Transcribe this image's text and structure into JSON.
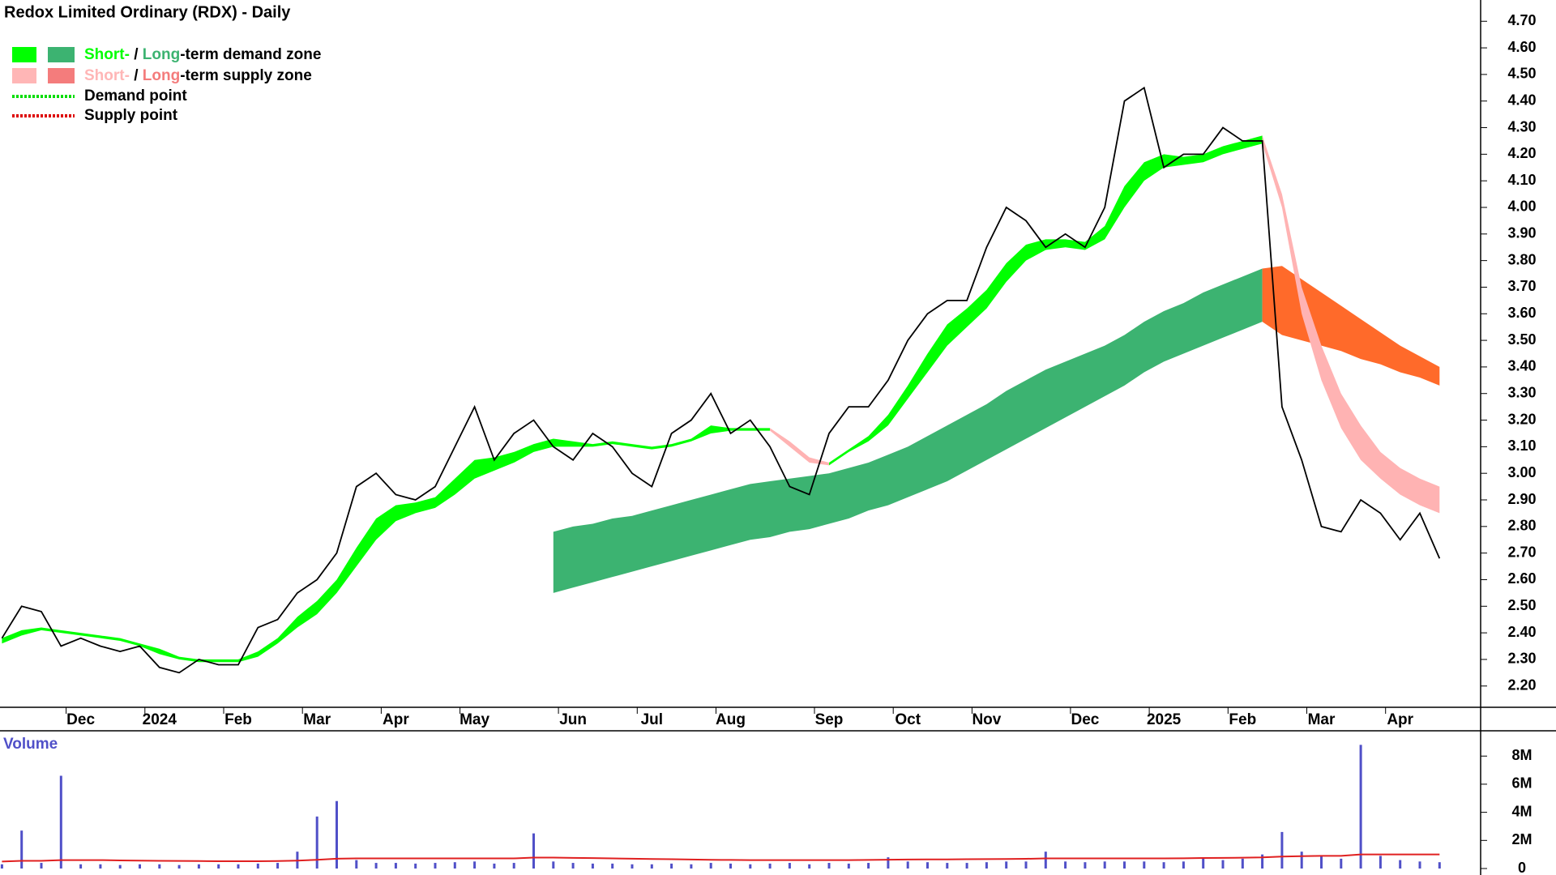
{
  "chart_data": {
    "type": "line",
    "title": "Redox Limited Ordinary (RDX) - Daily",
    "legend": [
      {
        "short": "Short-",
        "sep": "/",
        "long": "Long",
        "label": "-term demand zone",
        "colors": [
          "#00ff00",
          "#3cb371"
        ]
      },
      {
        "short": "Short-",
        "sep": "/",
        "long": "Long",
        "label": "-term supply zone",
        "colors": [
          "#ffb6b6",
          "#f47c7c"
        ]
      }
    ],
    "points": [
      {
        "label": "Demand point",
        "color": "#00dd00"
      },
      {
        "label": "Supply point",
        "color": "#dd0000"
      }
    ],
    "categories": [
      null,
      null,
      null,
      null,
      "Dec",
      null,
      null,
      null,
      "2024",
      null,
      null,
      null,
      "Feb",
      null,
      null,
      null,
      "Mar",
      null,
      null,
      null,
      "Apr",
      null,
      null,
      null,
      "May",
      null,
      null,
      null,
      null,
      "Jun",
      null,
      null,
      null,
      "Jul",
      null,
      null,
      null,
      "Aug",
      null,
      null,
      null,
      null,
      "Sep",
      null,
      null,
      null,
      "Oct",
      null,
      null,
      null,
      "Nov",
      null,
      null,
      null,
      null,
      "Dec",
      null,
      null,
      null,
      "2025",
      null,
      null,
      null,
      "Feb",
      null,
      null,
      null,
      "Mar",
      null,
      null,
      null,
      "Apr",
      null,
      null
    ],
    "price": {
      "color": "#000000",
      "values": [
        2.38,
        2.5,
        2.48,
        2.35,
        2.38,
        2.35,
        2.33,
        2.35,
        2.27,
        2.25,
        2.3,
        2.28,
        2.28,
        2.42,
        2.45,
        2.55,
        2.6,
        2.7,
        2.95,
        3.0,
        2.92,
        2.9,
        2.95,
        3.1,
        3.25,
        3.05,
        3.15,
        3.2,
        3.1,
        3.05,
        3.15,
        3.1,
        3.0,
        2.95,
        3.15,
        3.2,
        3.3,
        3.15,
        3.2,
        3.1,
        2.95,
        2.92,
        3.15,
        3.25,
        3.25,
        3.35,
        3.5,
        3.6,
        3.65,
        3.65,
        3.85,
        4.0,
        3.95,
        3.85,
        3.9,
        3.85,
        4.0,
        4.4,
        4.45,
        4.15,
        4.2,
        4.2,
        4.3,
        4.25,
        4.25,
        3.25,
        3.05,
        2.8,
        2.78,
        2.9,
        2.85,
        2.75,
        2.85,
        2.68
      ]
    },
    "zones": [
      {
        "color": "#3cb371",
        "upper": [
          null,
          null,
          null,
          null,
          null,
          null,
          null,
          null,
          null,
          null,
          null,
          null,
          null,
          null,
          null,
          null,
          null,
          null,
          null,
          null,
          null,
          null,
          null,
          null,
          null,
          null,
          null,
          null,
          2.78,
          2.8,
          2.81,
          2.83,
          2.84,
          2.86,
          2.88,
          2.9,
          2.92,
          2.94,
          2.96,
          2.97,
          2.98,
          2.99,
          3.0,
          3.02,
          3.04,
          3.07,
          3.1,
          3.14,
          3.18,
          3.22,
          3.26,
          3.31,
          3.35,
          3.39,
          3.42,
          3.45,
          3.48,
          3.52,
          3.57,
          3.61,
          3.64,
          3.68,
          3.71,
          3.74,
          3.77,
          null,
          null,
          null,
          null,
          null,
          null,
          null,
          null,
          null
        ],
        "lower": [
          null,
          null,
          null,
          null,
          null,
          null,
          null,
          null,
          null,
          null,
          null,
          null,
          null,
          null,
          null,
          null,
          null,
          null,
          null,
          null,
          null,
          null,
          null,
          null,
          null,
          null,
          null,
          null,
          2.55,
          2.57,
          2.59,
          2.61,
          2.63,
          2.65,
          2.67,
          2.69,
          2.71,
          2.73,
          2.75,
          2.76,
          2.78,
          2.79,
          2.81,
          2.83,
          2.86,
          2.88,
          2.91,
          2.94,
          2.97,
          3.01,
          3.05,
          3.09,
          3.13,
          3.17,
          3.21,
          3.25,
          3.29,
          3.33,
          3.38,
          3.42,
          3.45,
          3.48,
          3.51,
          3.54,
          3.57,
          null,
          null,
          null,
          null,
          null,
          null,
          null,
          null,
          null
        ]
      },
      {
        "color": "#ff6a2a",
        "upper": [
          null,
          null,
          null,
          null,
          null,
          null,
          null,
          null,
          null,
          null,
          null,
          null,
          null,
          null,
          null,
          null,
          null,
          null,
          null,
          null,
          null,
          null,
          null,
          null,
          null,
          null,
          null,
          null,
          null,
          null,
          null,
          null,
          null,
          null,
          null,
          null,
          null,
          null,
          null,
          null,
          null,
          null,
          null,
          null,
          null,
          null,
          null,
          null,
          null,
          null,
          null,
          null,
          null,
          null,
          null,
          null,
          null,
          null,
          null,
          null,
          null,
          null,
          null,
          null,
          3.77,
          3.78,
          3.73,
          3.68,
          3.63,
          3.58,
          3.53,
          3.48,
          3.44,
          3.4
        ],
        "lower": [
          null,
          null,
          null,
          null,
          null,
          null,
          null,
          null,
          null,
          null,
          null,
          null,
          null,
          null,
          null,
          null,
          null,
          null,
          null,
          null,
          null,
          null,
          null,
          null,
          null,
          null,
          null,
          null,
          null,
          null,
          null,
          null,
          null,
          null,
          null,
          null,
          null,
          null,
          null,
          null,
          null,
          null,
          null,
          null,
          null,
          null,
          null,
          null,
          null,
          null,
          null,
          null,
          null,
          null,
          null,
          null,
          null,
          null,
          null,
          null,
          null,
          null,
          null,
          null,
          3.57,
          3.52,
          3.5,
          3.48,
          3.46,
          3.43,
          3.41,
          3.38,
          3.36,
          3.33
        ]
      },
      {
        "color": "#00ff00",
        "upper": [
          2.38,
          2.41,
          2.42,
          2.41,
          2.4,
          2.39,
          2.38,
          2.36,
          2.34,
          2.31,
          2.3,
          2.3,
          2.3,
          2.33,
          2.38,
          2.46,
          2.52,
          2.6,
          2.72,
          2.83,
          2.88,
          2.89,
          2.91,
          2.98,
          3.05,
          3.06,
          3.08,
          3.11,
          3.13,
          3.12,
          3.11,
          3.12,
          3.11,
          3.1,
          3.11,
          3.13,
          3.18,
          3.17,
          3.17,
          3.17,
          null,
          null,
          3.04,
          3.09,
          3.14,
          3.22,
          3.33,
          3.45,
          3.56,
          3.62,
          3.69,
          3.79,
          3.86,
          3.88,
          3.88,
          3.87,
          3.93,
          4.08,
          4.17,
          4.2,
          4.19,
          4.2,
          4.23,
          4.25,
          4.27,
          null,
          null,
          null,
          null,
          null,
          null,
          null,
          null,
          null
        ],
        "lower": [
          2.36,
          2.39,
          2.41,
          2.4,
          2.39,
          2.38,
          2.37,
          2.35,
          2.32,
          2.3,
          2.29,
          2.29,
          2.29,
          2.31,
          2.36,
          2.42,
          2.47,
          2.55,
          2.65,
          2.75,
          2.82,
          2.85,
          2.87,
          2.92,
          2.98,
          3.01,
          3.04,
          3.08,
          3.1,
          3.1,
          3.1,
          3.11,
          3.1,
          3.09,
          3.1,
          3.12,
          3.15,
          3.16,
          3.16,
          3.16,
          null,
          null,
          3.03,
          3.08,
          3.12,
          3.18,
          3.28,
          3.38,
          3.48,
          3.55,
          3.62,
          3.72,
          3.8,
          3.84,
          3.85,
          3.84,
          3.88,
          4.0,
          4.1,
          4.15,
          4.16,
          4.17,
          4.2,
          4.22,
          4.24,
          null,
          null,
          null,
          null,
          null,
          null,
          null,
          null,
          null
        ]
      },
      {
        "color": "#ffb3b3",
        "upper": [
          null,
          null,
          null,
          null,
          null,
          null,
          null,
          null,
          null,
          null,
          null,
          null,
          null,
          null,
          null,
          null,
          null,
          null,
          null,
          null,
          null,
          null,
          null,
          null,
          null,
          null,
          null,
          null,
          null,
          null,
          null,
          null,
          null,
          null,
          null,
          null,
          null,
          null,
          null,
          3.17,
          3.12,
          3.06,
          3.04,
          null,
          null,
          null,
          null,
          null,
          null,
          null,
          null,
          null,
          null,
          null,
          null,
          null,
          null,
          null,
          null,
          null,
          null,
          null,
          null,
          null,
          4.27,
          4.05,
          3.7,
          3.48,
          3.3,
          3.18,
          3.08,
          3.02,
          2.98,
          2.95
        ],
        "lower": [
          null,
          null,
          null,
          null,
          null,
          null,
          null,
          null,
          null,
          null,
          null,
          null,
          null,
          null,
          null,
          null,
          null,
          null,
          null,
          null,
          null,
          null,
          null,
          null,
          null,
          null,
          null,
          null,
          null,
          null,
          null,
          null,
          null,
          null,
          null,
          null,
          null,
          null,
          null,
          3.16,
          3.1,
          3.04,
          3.03,
          null,
          null,
          null,
          null,
          null,
          null,
          null,
          null,
          null,
          null,
          null,
          null,
          null,
          null,
          null,
          null,
          null,
          null,
          null,
          null,
          null,
          4.24,
          4.0,
          3.6,
          3.35,
          3.17,
          3.05,
          2.98,
          2.92,
          2.88,
          2.85
        ]
      }
    ],
    "ylim": [
      2.12,
      4.78
    ],
    "yticks": [
      {
        "value": 2.2,
        "label": "2.20"
      },
      {
        "value": 2.3,
        "label": "2.30"
      },
      {
        "value": 2.4,
        "label": "2.40"
      },
      {
        "value": 2.5,
        "label": "2.50"
      },
      {
        "value": 2.6,
        "label": "2.60"
      },
      {
        "value": 2.7,
        "label": "2.70"
      },
      {
        "value": 2.8,
        "label": "2.80"
      },
      {
        "value": 2.9,
        "label": "2.90"
      },
      {
        "value": 3.0,
        "label": "3.00"
      },
      {
        "value": 3.1,
        "label": "3.10"
      },
      {
        "value": 3.2,
        "label": "3.20"
      },
      {
        "value": 3.3,
        "label": "3.30"
      },
      {
        "value": 3.4,
        "label": "3.40"
      },
      {
        "value": 3.5,
        "label": "3.50"
      },
      {
        "value": 3.6,
        "label": "3.60"
      },
      {
        "value": 3.7,
        "label": "3.70"
      },
      {
        "value": 3.8,
        "label": "3.80"
      },
      {
        "value": 3.9,
        "label": "3.90"
      },
      {
        "value": 4.0,
        "label": "4.00"
      },
      {
        "value": 4.1,
        "label": "4.10"
      },
      {
        "value": 4.2,
        "label": "4.20"
      },
      {
        "value": 4.3,
        "label": "4.30"
      },
      {
        "value": 4.4,
        "label": "4.40"
      },
      {
        "value": 4.5,
        "label": "4.50"
      },
      {
        "value": 4.6,
        "label": "4.60"
      },
      {
        "value": 4.7,
        "label": "4.70"
      }
    ],
    "volume": {
      "title": "Volume",
      "color": "#5050c8",
      "average_color": "#e02020",
      "values": [
        300000,
        2700000,
        400000,
        6600000,
        300000,
        300000,
        250000,
        300000,
        300000,
        250000,
        300000,
        300000,
        300000,
        350000,
        400000,
        1200000,
        3700000,
        4800000,
        600000,
        400000,
        400000,
        350000,
        400000,
        450000,
        500000,
        350000,
        400000,
        2500000,
        500000,
        400000,
        350000,
        350000,
        300000,
        300000,
        350000,
        300000,
        400000,
        350000,
        300000,
        350000,
        400000,
        300000,
        400000,
        350000,
        400000,
        800000,
        500000,
        450000,
        400000,
        400000,
        450000,
        500000,
        500000,
        1200000,
        500000,
        450000,
        500000,
        500000,
        500000,
        450000,
        500000,
        800000,
        600000,
        700000,
        1000000,
        2600000,
        1200000,
        900000,
        700000,
        8800000,
        900000,
        600000,
        500000,
        450000
      ],
      "average": [
        500000,
        550000,
        550000,
        600000,
        600000,
        600000,
        580000,
        560000,
        550000,
        540000,
        530000,
        520000,
        520000,
        520000,
        530000,
        560000,
        620000,
        700000,
        720000,
        720000,
        720000,
        720000,
        720000,
        720000,
        720000,
        720000,
        720000,
        780000,
        780000,
        760000,
        740000,
        720000,
        700000,
        680000,
        660000,
        640000,
        620000,
        610000,
        600000,
        600000,
        600000,
        600000,
        600000,
        600000,
        610000,
        630000,
        640000,
        650000,
        650000,
        660000,
        670000,
        680000,
        690000,
        720000,
        720000,
        720000,
        720000,
        720000,
        720000,
        720000,
        730000,
        750000,
        760000,
        770000,
        790000,
        850000,
        880000,
        900000,
        900000,
        1000000,
        1000000,
        1000000,
        1000000,
        1000000
      ],
      "ylim": [
        0,
        9800000
      ],
      "yticks": [
        0,
        {
          "value": 2000000,
          "label": "2M"
        },
        {
          "value": 4000000,
          "label": "4M"
        },
        {
          "value": 6000000,
          "label": "6M"
        },
        {
          "value": 8000000,
          "label": "8M"
        }
      ]
    }
  }
}
